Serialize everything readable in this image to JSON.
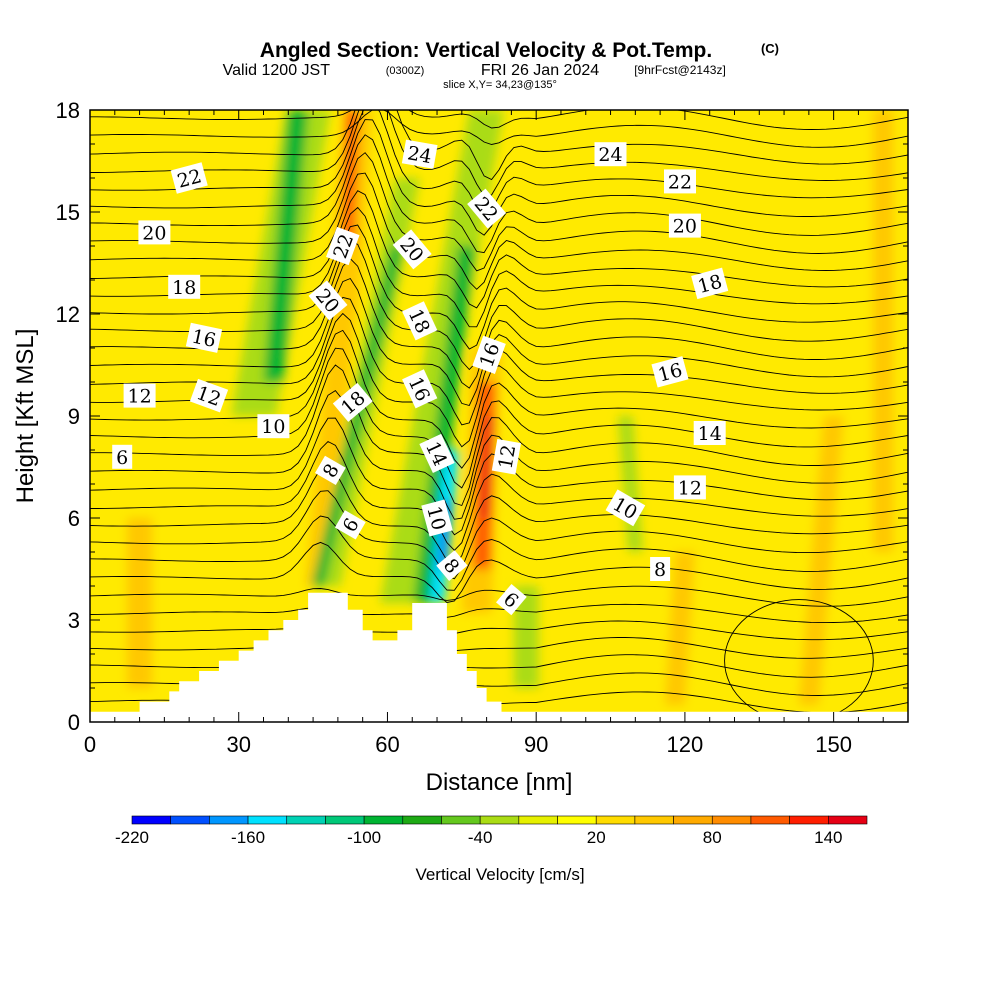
{
  "title": {
    "main": "Angled Section: Vertical Velocity & Pot.Temp.",
    "copyright": "(C)",
    "valid_a": "Valid 1200 JST",
    "valid_utc": "(0300Z)",
    "valid_b": "FRI 26 Jan 2024",
    "forecast": "[9hrFcst@2143z]",
    "slice": "slice X,Y= 34,23@135°"
  },
  "colors": {
    "background_field": "#ffea00",
    "terrain": "#ffffff",
    "contour": "#000000"
  },
  "chart_data": {
    "type": "heatmap",
    "xlabel": "Distance [nm]",
    "ylabel": "Height [Kft MSL]",
    "xlim": [
      0,
      165
    ],
    "ylim": [
      0,
      18
    ],
    "x_ticks": [
      "0",
      "30",
      "60",
      "90",
      "120",
      "150"
    ],
    "y_ticks": [
      "0",
      "3",
      "6",
      "9",
      "12",
      "15",
      "18"
    ],
    "colorbar": {
      "label": "Vertical Velocity [cm/s]",
      "min": -220,
      "max": 160,
      "step": 20,
      "tick_labels": [
        "-220",
        "-160",
        "-100",
        "-40",
        "20",
        "80",
        "140"
      ],
      "colors": [
        "#0000ff",
        "#0050ff",
        "#0096ff",
        "#00e1ff",
        "#00d2b4",
        "#00c878",
        "#00b432",
        "#1eaa14",
        "#64c81e",
        "#aadc14",
        "#e6f000",
        "#ffff00",
        "#ffdc00",
        "#ffc800",
        "#ffaa00",
        "#ff8c00",
        "#ff5a00",
        "#ff1e00",
        "#e60014",
        "#be0a32",
        "#960a5a",
        "#640a8c"
      ]
    },
    "terrain_profile": [
      [
        0,
        0.3
      ],
      [
        10,
        0.3
      ],
      [
        10,
        0.6
      ],
      [
        16,
        0.6
      ],
      [
        16,
        0.9
      ],
      [
        18,
        0.9
      ],
      [
        18,
        1.2
      ],
      [
        22,
        1.2
      ],
      [
        22,
        1.5
      ],
      [
        26,
        1.5
      ],
      [
        26,
        1.8
      ],
      [
        30,
        1.8
      ],
      [
        30,
        2.1
      ],
      [
        33,
        2.1
      ],
      [
        33,
        2.4
      ],
      [
        36,
        2.4
      ],
      [
        36,
        2.7
      ],
      [
        39,
        2.7
      ],
      [
        39,
        3.0
      ],
      [
        42,
        3.0
      ],
      [
        42,
        3.3
      ],
      [
        44,
        3.3
      ],
      [
        44,
        3.8
      ],
      [
        52,
        3.8
      ],
      [
        52,
        3.3
      ],
      [
        55,
        3.3
      ],
      [
        55,
        2.7
      ],
      [
        57,
        2.7
      ],
      [
        57,
        2.4
      ],
      [
        62,
        2.4
      ],
      [
        62,
        2.7
      ],
      [
        65,
        2.7
      ],
      [
        65,
        3.5
      ],
      [
        72,
        3.5
      ],
      [
        72,
        2.7
      ],
      [
        74,
        2.7
      ],
      [
        74,
        2.0
      ],
      [
        76,
        2.0
      ],
      [
        76,
        1.5
      ],
      [
        78,
        1.5
      ],
      [
        78,
        1.0
      ],
      [
        80,
        1.0
      ],
      [
        80,
        0.6
      ],
      [
        83,
        0.6
      ],
      [
        83,
        0.3
      ],
      [
        165,
        0.3
      ]
    ],
    "field_bands": [
      {
        "value": -40,
        "x": 33,
        "y0": 9,
        "x1": 44,
        "y1": 18,
        "width": 9
      },
      {
        "value": -100,
        "x": 37,
        "y0": 10,
        "x1": 42,
        "y1": 18,
        "width": 4
      },
      {
        "value": 40,
        "x": 51,
        "y0": 12,
        "x1": 54,
        "y1": 18,
        "width": 6
      },
      {
        "value": 100,
        "x": 52,
        "y0": 14,
        "x1": 53,
        "y1": 18,
        "width": 2.5
      },
      {
        "value": 40,
        "x": 46,
        "y0": 4,
        "x1": 51,
        "y1": 12,
        "width": 5
      },
      {
        "value": -40,
        "x": 48,
        "y0": 4,
        "x1": 64,
        "y1": 16,
        "width": 5
      },
      {
        "value": -100,
        "x": 46,
        "y0": 4,
        "x1": 62,
        "y1": 14,
        "width": 2.5
      },
      {
        "value": -40,
        "x": 62,
        "y0": 3.5,
        "x1": 80,
        "y1": 18,
        "width": 7
      },
      {
        "value": -100,
        "x": 67,
        "y0": 3.5,
        "x1": 76,
        "y1": 14,
        "width": 3.5
      },
      {
        "value": -160,
        "x": 70,
        "y0": 3.5,
        "x1": 73,
        "y1": 8,
        "width": 3
      },
      {
        "value": -220,
        "x": 71,
        "y0": 4.5,
        "x1": 72,
        "y1": 6.5,
        "width": 1.2
      },
      {
        "value": 40,
        "x": 78,
        "y0": 3.2,
        "x1": 80,
        "y1": 11,
        "width": 6
      },
      {
        "value": 100,
        "x": 79,
        "y0": 4.5,
        "x1": 80,
        "y1": 10,
        "width": 3.5
      },
      {
        "value": 140,
        "x": 79.5,
        "y0": 6,
        "x1": 80.5,
        "y1": 9,
        "width": 1.5
      },
      {
        "value": -40,
        "x": 88,
        "y0": 1,
        "x1": 88,
        "y1": 4,
        "width": 5
      },
      {
        "value": 40,
        "x": 10,
        "y0": 1,
        "x1": 10,
        "y1": 6,
        "width": 5
      },
      {
        "value": 40,
        "x": 118,
        "y0": 0.5,
        "x1": 120,
        "y1": 5,
        "width": 4
      },
      {
        "value": 40,
        "x": 145,
        "y0": 0.5,
        "x1": 150,
        "y1": 9,
        "width": 4
      },
      {
        "value": 40,
        "x": 160,
        "y0": 5,
        "x1": 160,
        "y1": 18,
        "width": 4
      },
      {
        "value": -40,
        "x": 110,
        "y0": 5,
        "x1": 108,
        "y1": 9,
        "width": 3
      }
    ],
    "contour_labels": [
      {
        "text": "22",
        "x": 20,
        "y": 16.0,
        "rot": -15
      },
      {
        "text": "20",
        "x": 13,
        "y": 14.4,
        "rot": 0
      },
      {
        "text": "18",
        "x": 19,
        "y": 12.8,
        "rot": 0
      },
      {
        "text": "16",
        "x": 23,
        "y": 11.3,
        "rot": 12
      },
      {
        "text": "12",
        "x": 10,
        "y": 9.6,
        "rot": 0
      },
      {
        "text": "12",
        "x": 24,
        "y": 9.6,
        "rot": 20
      },
      {
        "text": "10",
        "x": 37,
        "y": 8.7,
        "rot": 0
      },
      {
        "text": "6",
        "x": 6.5,
        "y": 7.8,
        "rot": 0
      },
      {
        "text": "8",
        "x": 48.5,
        "y": 7.4,
        "rot": -60
      },
      {
        "text": "6",
        "x": 52.5,
        "y": 5.8,
        "rot": -60
      },
      {
        "text": "22",
        "x": 51,
        "y": 14.0,
        "rot": -70
      },
      {
        "text": "20",
        "x": 48,
        "y": 12.4,
        "rot": 50
      },
      {
        "text": "18",
        "x": 53,
        "y": 9.4,
        "rot": -40
      },
      {
        "text": "24",
        "x": 66.5,
        "y": 16.7,
        "rot": 10
      },
      {
        "text": "20",
        "x": 65,
        "y": 13.9,
        "rot": 50
      },
      {
        "text": "22",
        "x": 80,
        "y": 15.1,
        "rot": 50
      },
      {
        "text": "18",
        "x": 66.5,
        "y": 11.8,
        "rot": 65
      },
      {
        "text": "16",
        "x": 66.5,
        "y": 9.8,
        "rot": 65
      },
      {
        "text": "14",
        "x": 70,
        "y": 7.9,
        "rot": 65
      },
      {
        "text": "10",
        "x": 70,
        "y": 6.0,
        "rot": 75
      },
      {
        "text": "8",
        "x": 73,
        "y": 4.6,
        "rot": 50
      },
      {
        "text": "16",
        "x": 80.5,
        "y": 10.8,
        "rot": -70
      },
      {
        "text": "12",
        "x": 84,
        "y": 7.8,
        "rot": -80
      },
      {
        "text": "6",
        "x": 85,
        "y": 3.6,
        "rot": 40
      },
      {
        "text": "24",
        "x": 105,
        "y": 16.7,
        "rot": 0
      },
      {
        "text": "22",
        "x": 119,
        "y": 15.9,
        "rot": 0
      },
      {
        "text": "20",
        "x": 120,
        "y": 14.6,
        "rot": 0
      },
      {
        "text": "18",
        "x": 125,
        "y": 12.9,
        "rot": -15
      },
      {
        "text": "16",
        "x": 117,
        "y": 10.3,
        "rot": -15
      },
      {
        "text": "14",
        "x": 125,
        "y": 8.5,
        "rot": 0
      },
      {
        "text": "12",
        "x": 121,
        "y": 6.9,
        "rot": 0
      },
      {
        "text": "10",
        "x": 108,
        "y": 6.3,
        "rot": 30
      },
      {
        "text": "8",
        "x": 115,
        "y": 4.5,
        "rot": 0
      }
    ]
  }
}
